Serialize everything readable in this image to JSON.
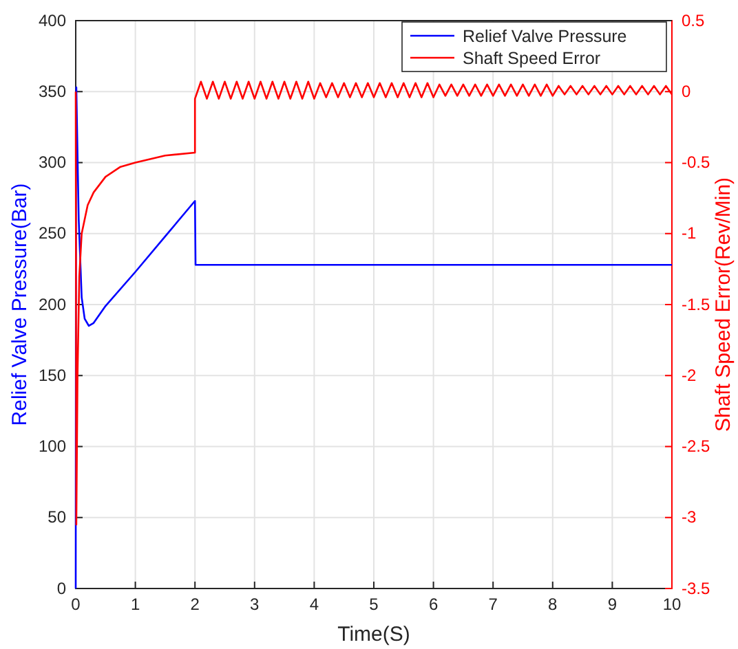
{
  "chart_data": {
    "type": "line",
    "xlabel": "Time(S)",
    "ylabel": "Relief Valve Pressure(Bar)",
    "y2label": "Shaft Speed Error(Rev/Min)",
    "xlim": [
      0,
      10
    ],
    "xticks": [
      0,
      1,
      2,
      3,
      4,
      5,
      6,
      7,
      8,
      9,
      10
    ],
    "ylim": [
      0,
      400
    ],
    "yticks": [
      0,
      50,
      100,
      150,
      200,
      250,
      300,
      350,
      400
    ],
    "y2lim": [
      -3.5,
      0.5
    ],
    "y2ticks": [
      -3.5,
      -3,
      -2.5,
      -2,
      -1.5,
      -1,
      -0.5,
      0,
      0.5
    ],
    "grid": true,
    "legend": "top right",
    "line_style": "solid",
    "marker": "none",
    "series": [
      {
        "name": "Relief Valve Pressure",
        "color": "#0000ff",
        "x": [
          0,
          0.005,
          0.01,
          0.05,
          0.1,
          0.15,
          0.22,
          0.3,
          0.5,
          1,
          1.5,
          2,
          2.01,
          10
        ],
        "values": [
          0,
          340,
          353,
          260,
          205,
          190,
          185,
          187,
          199,
          223,
          248,
          273,
          228,
          228
        ]
      },
      {
        "name": "Shaft Speed Error",
        "color": "#ff0000",
        "axis": "y2",
        "x": [
          0,
          0.01,
          0.03,
          0.06,
          0.1,
          0.2,
          0.3,
          0.5,
          0.75,
          1,
          1.5,
          2,
          2,
          2.1,
          2.2,
          2.3,
          2.4,
          2.5,
          2.6,
          2.7,
          2.8,
          2.9,
          3,
          3.1,
          3.2,
          3.3,
          3.4,
          3.5,
          3.6,
          3.7,
          3.8,
          3.9,
          4,
          4.1,
          4.2,
          4.3,
          4.4,
          4.5,
          4.6,
          4.7,
          4.8,
          4.9,
          5,
          5.1,
          5.2,
          5.3,
          5.4,
          5.5,
          5.6,
          5.7,
          5.8,
          5.9,
          6,
          6.1,
          6.2,
          6.3,
          6.4,
          6.5,
          6.6,
          6.7,
          6.8,
          6.9,
          7,
          7.1,
          7.2,
          7.3,
          7.4,
          7.5,
          7.6,
          7.7,
          7.8,
          7.9,
          8,
          8.1,
          8.2,
          8.3,
          8.4,
          8.5,
          8.6,
          8.7,
          8.8,
          8.9,
          9,
          9.1,
          9.2,
          9.3,
          9.4,
          9.5,
          9.6,
          9.7,
          9.8,
          9.9,
          10
        ],
        "values": [
          0,
          -3.05,
          -2,
          -1.3,
          -1,
          -0.8,
          -0.71,
          -0.6,
          -0.53,
          -0.5,
          -0.45,
          -0.43,
          -0.05,
          0.07,
          -0.05,
          0.07,
          -0.05,
          0.07,
          -0.05,
          0.07,
          -0.05,
          0.07,
          -0.05,
          0.07,
          -0.05,
          0.07,
          -0.05,
          0.07,
          -0.05,
          0.07,
          -0.05,
          0.07,
          -0.05,
          0.06,
          -0.04,
          0.06,
          -0.04,
          0.06,
          -0.04,
          0.06,
          -0.04,
          0.06,
          -0.04,
          0.06,
          -0.04,
          0.06,
          -0.04,
          0.06,
          -0.04,
          0.06,
          -0.04,
          0.06,
          -0.04,
          0.05,
          -0.03,
          0.05,
          -0.03,
          0.05,
          -0.03,
          0.05,
          -0.03,
          0.05,
          -0.03,
          0.05,
          -0.03,
          0.05,
          -0.03,
          0.05,
          -0.03,
          0.05,
          -0.03,
          0.05,
          -0.03,
          0.04,
          -0.02,
          0.04,
          -0.02,
          0.04,
          -0.02,
          0.04,
          -0.02,
          0.04,
          -0.02,
          0.04,
          -0.02,
          0.04,
          -0.02,
          0.04,
          -0.02,
          0.04,
          -0.02,
          0.04,
          -0.02
        ]
      }
    ]
  }
}
